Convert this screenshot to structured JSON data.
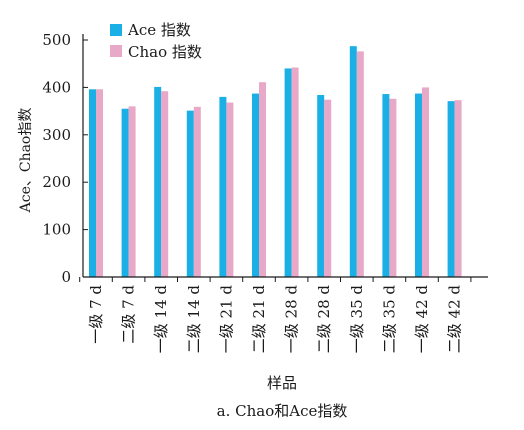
{
  "chart_data": {
    "type": "bar",
    "title": "",
    "caption": "a. Chao和Ace指数",
    "xlabel": "样品",
    "ylabel": "Ace、Chao指数",
    "ylim": [
      0,
      500
    ],
    "yticks": [
      0,
      100,
      200,
      300,
      400,
      500
    ],
    "grid": false,
    "legend_position": "top-left",
    "categories": [
      "一级 7 d",
      "二级 7 d",
      "一级 14 d",
      "二级 14 d",
      "一级 21 d",
      "二级 21 d",
      "一级 28 d",
      "二级 28 d",
      "一级 35 d",
      "二级 35 d",
      "一级 42 d",
      "二级 42 d"
    ],
    "series": [
      {
        "name": "Ace 指数",
        "color": "#1ab0e6",
        "values": [
          396,
          355,
          401,
          351,
          380,
          387,
          440,
          384,
          487,
          386,
          387,
          371
        ]
      },
      {
        "name": "Chao 指数",
        "color": "#e8a8c8",
        "values": [
          396,
          360,
          392,
          359,
          368,
          411,
          442,
          374,
          476,
          376,
          400,
          373
        ]
      }
    ]
  }
}
